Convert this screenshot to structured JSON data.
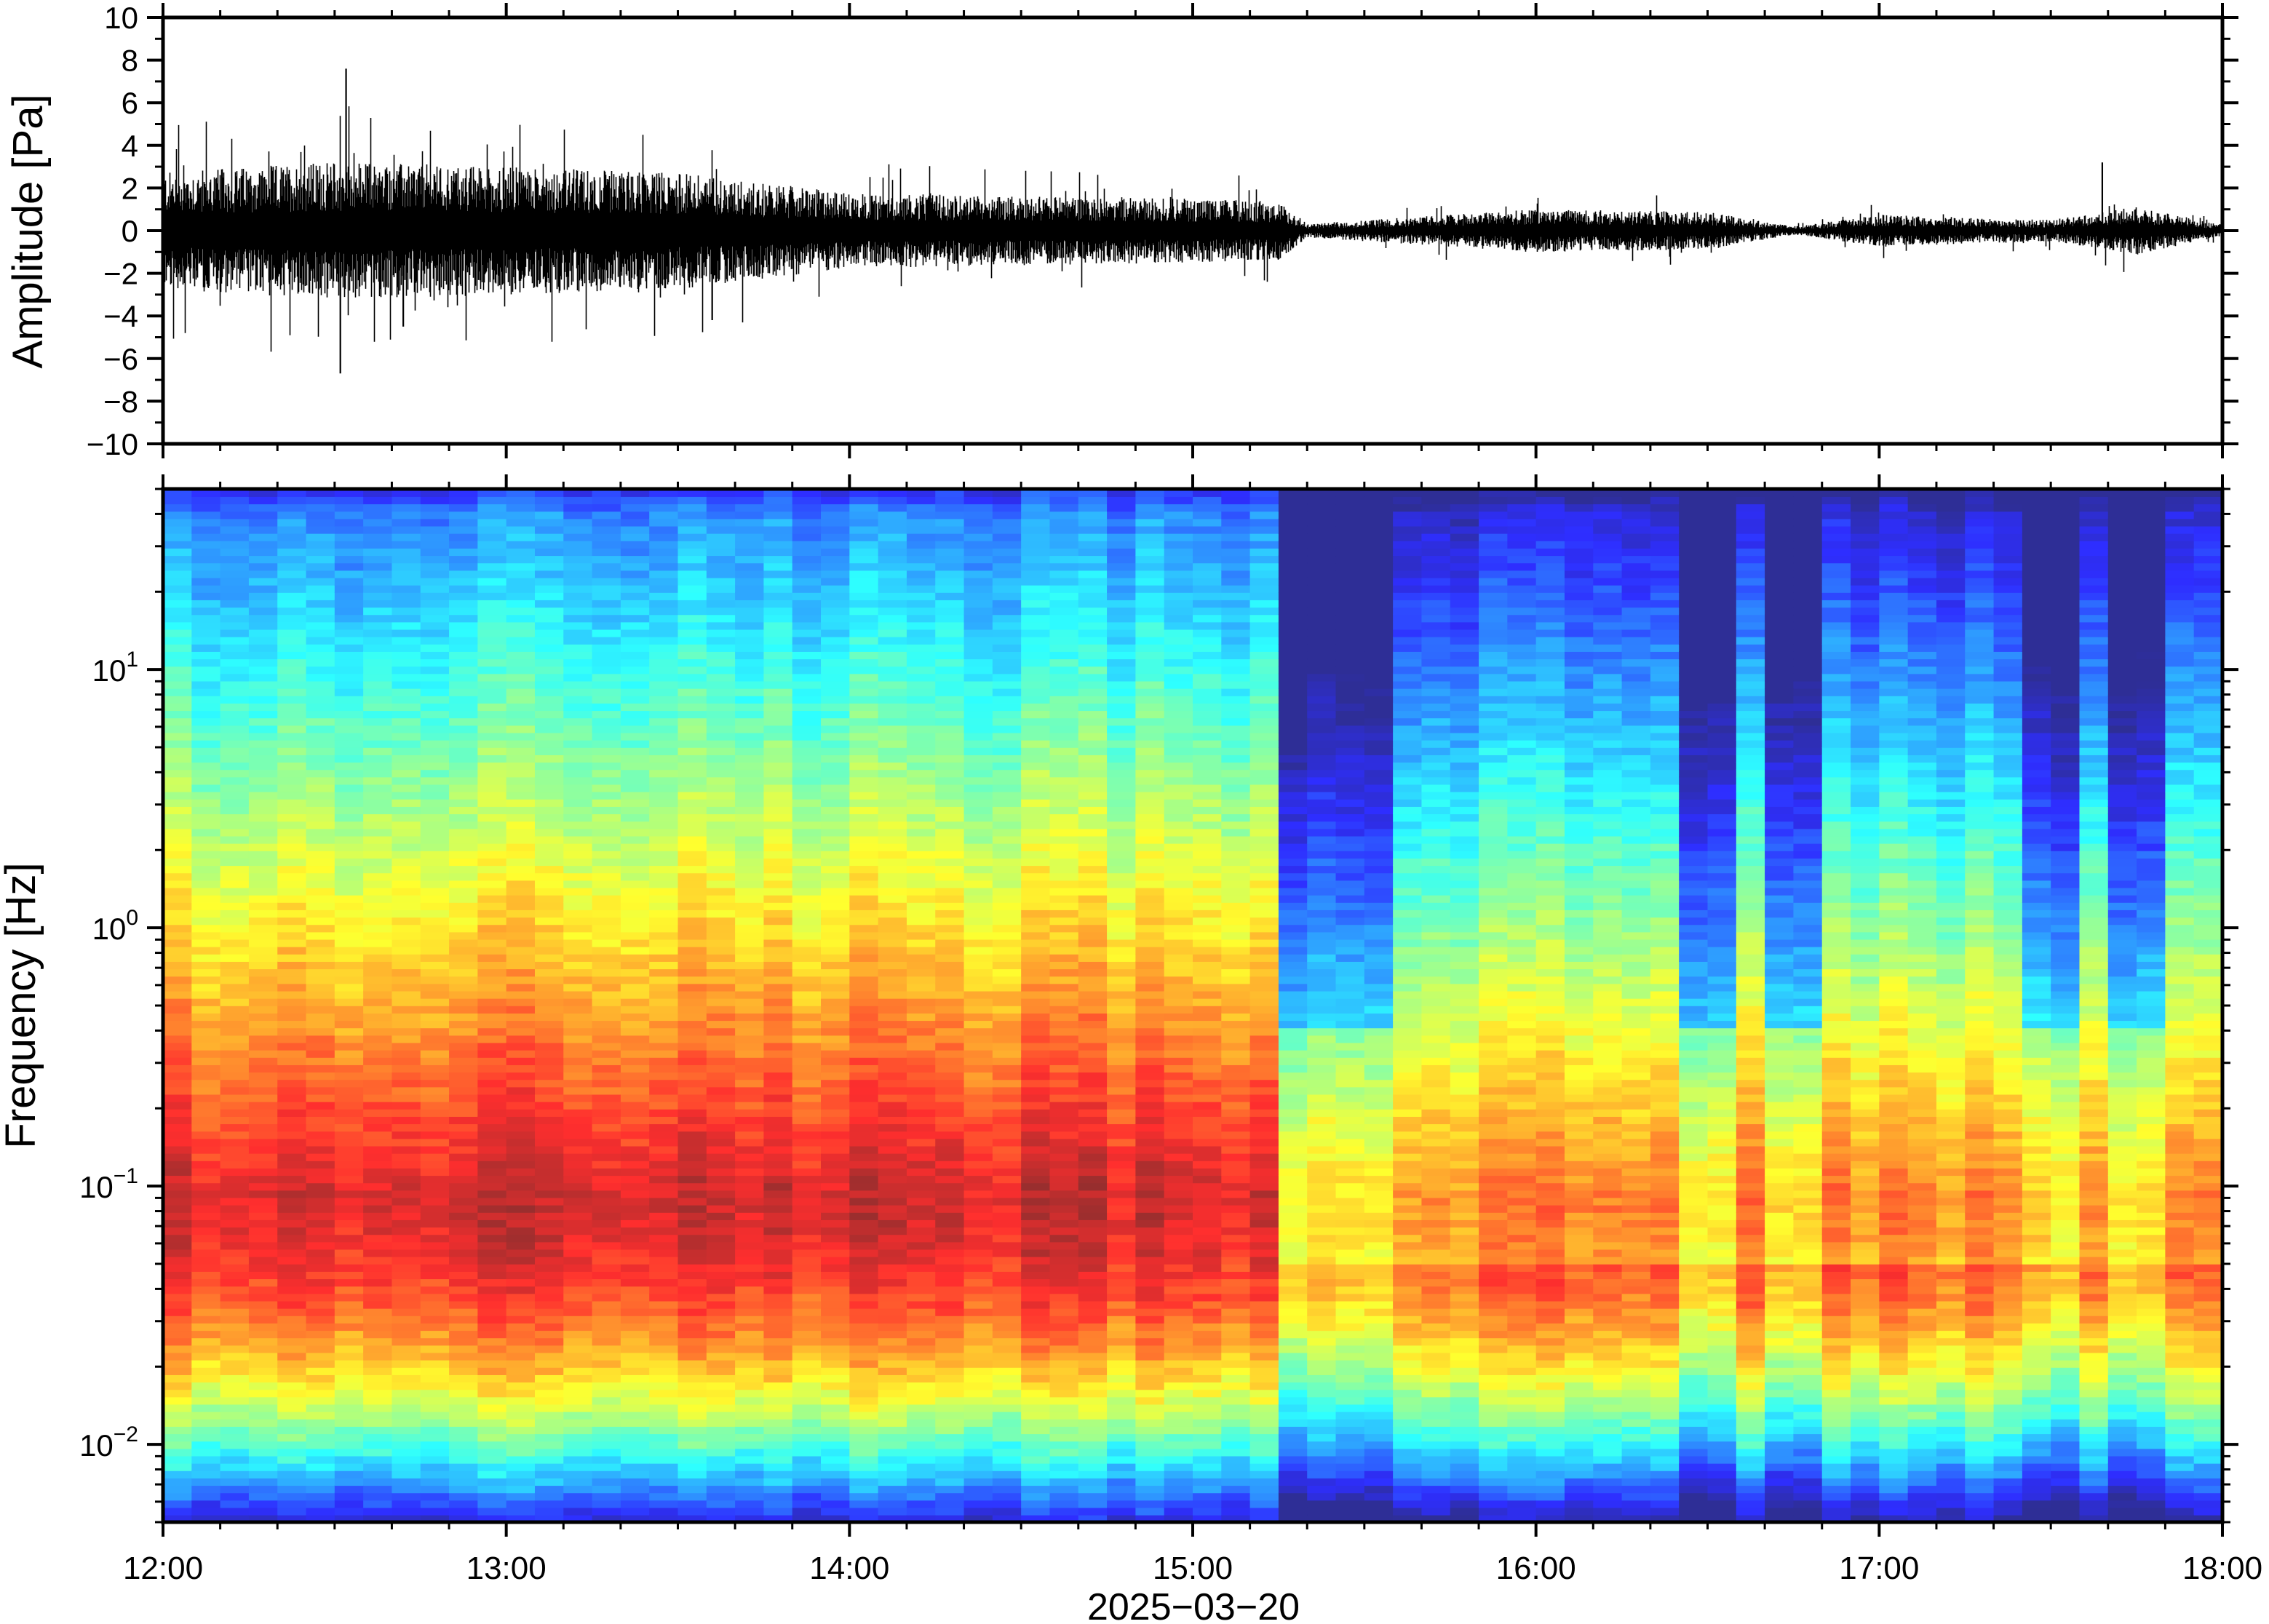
{
  "chart_data": [
    {
      "type": "line",
      "panel": "waveform",
      "title": "",
      "xlabel": "",
      "ylabel": "Amplitude [Pa]",
      "ylim": [
        -10,
        10
      ],
      "yticks": [
        {
          "value": 10,
          "label": "10"
        },
        {
          "value": 8,
          "label": "8"
        },
        {
          "value": 6,
          "label": "6"
        },
        {
          "value": 4,
          "label": "4"
        },
        {
          "value": 2,
          "label": "2"
        },
        {
          "value": 0,
          "label": "0"
        },
        {
          "value": -2,
          "label": "−2"
        },
        {
          "value": -4,
          "label": "−4"
        },
        {
          "value": -6,
          "label": "−6"
        },
        {
          "value": -8,
          "label": "−8"
        },
        {
          "value": -10,
          "label": "−10"
        }
      ],
      "xlim": [
        "12:00",
        "18:00"
      ],
      "series": [
        {
          "color": "#000000",
          "envelope_times": [
            "12:00",
            "12:30",
            "13:00",
            "13:30",
            "14:00",
            "14:30",
            "15:00",
            "15:15",
            "15:20",
            "15:30",
            "16:00",
            "16:30",
            "16:45",
            "17:00",
            "17:30",
            "17:45",
            "18:00"
          ],
          "envelope_amplitude": [
            2.2,
            2.6,
            2.4,
            2.2,
            1.4,
            1.3,
            1.2,
            1.1,
            0.25,
            0.4,
            0.8,
            0.7,
            0.15,
            0.6,
            0.4,
            0.9,
            0.2
          ],
          "peaks": [
            {
              "time": "12:32",
              "value": 7.6
            },
            {
              "time": "12:31",
              "value": -6.7
            },
            {
              "time": "12:42",
              "value": -4.5
            },
            {
              "time": "13:36",
              "value": -4.2
            },
            {
              "time": "17:39",
              "value": 3.2
            }
          ]
        }
      ]
    },
    {
      "type": "heatmap",
      "panel": "spectrogram",
      "title": "",
      "xlabel": "2025−03−20",
      "ylabel": "Frequency [Hz]",
      "yscale": "log",
      "ylim": [
        0.005,
        50
      ],
      "yticks": [
        {
          "value": 0.01,
          "mantissa": "10",
          "exponent": "−2"
        },
        {
          "value": 0.1,
          "mantissa": "10",
          "exponent": "−1"
        },
        {
          "value": 1,
          "mantissa": "10",
          "exponent": "0"
        },
        {
          "value": 10,
          "mantissa": "10",
          "exponent": "1"
        }
      ],
      "xticks": [
        "12:00",
        "13:00",
        "14:00",
        "15:00",
        "16:00",
        "17:00",
        "18:00"
      ],
      "colormap": "jet (dark blue = low power, red/pink = high power)",
      "dominant_frequency_band_hz": [
        0.03,
        0.3
      ],
      "quiet_columns": [
        "15:20",
        "15:30",
        "16:30",
        "16:45",
        "17:30",
        "17:45"
      ],
      "colors": {
        "low": "#00007f",
        "mid": "#7fff7f",
        "high": "#ff4f4f",
        "peak": "#ff8080"
      }
    }
  ]
}
